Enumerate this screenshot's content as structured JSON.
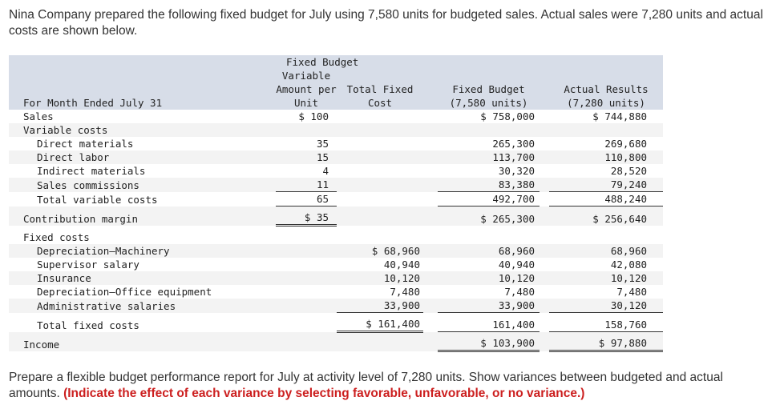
{
  "intro": "Nina Company prepared the following fixed budget for July using 7,580 units for budgeted sales. Actual sales were 7,280 units and actual costs are shown below.",
  "header": {
    "group_title": "Fixed Budget",
    "var_line1": "Variable",
    "var_line2": "Amount per",
    "var_line3": "Unit",
    "total_fixed_line1": "Total Fixed",
    "total_fixed_line2": "Cost",
    "fixed_budget_line1": "Fixed Budget",
    "fixed_budget_line2": "(7,580 units)",
    "actual_line1": "Actual Results",
    "actual_line2": "(7,280 units)",
    "period": "For Month Ended July 31"
  },
  "rows": {
    "sales": {
      "label": "Sales",
      "var": "$ 100",
      "fixed": "",
      "budget": "$ 758,000",
      "actual": "$ 744,880"
    },
    "variable_costs": {
      "label": "Variable costs"
    },
    "direct_materials": {
      "label": "Direct materials",
      "var": "35",
      "budget": "265,300",
      "actual": "269,680"
    },
    "direct_labor": {
      "label": "Direct labor",
      "var": "15",
      "budget": "113,700",
      "actual": "110,800"
    },
    "indirect_materials": {
      "label": "Indirect materials",
      "var": "4",
      "budget": "30,320",
      "actual": "28,520"
    },
    "sales_commissions": {
      "label": "Sales commissions",
      "var": "11",
      "budget": "83,380",
      "actual": "79,240"
    },
    "total_variable": {
      "label": "Total variable costs",
      "var": "65",
      "budget": "492,700",
      "actual": "488,240"
    },
    "contribution_margin": {
      "label": "Contribution margin",
      "var": "$ 35",
      "budget": "$ 265,300",
      "actual": "$ 256,640"
    },
    "fixed_costs": {
      "label": "Fixed costs"
    },
    "dep_machinery": {
      "label": "Depreciation—Machinery",
      "fixed": "$ 68,960",
      "budget": "68,960",
      "actual": "68,960"
    },
    "supervisor_salary": {
      "label": "Supervisor salary",
      "fixed": "40,940",
      "budget": "40,940",
      "actual": "42,080"
    },
    "insurance": {
      "label": "Insurance",
      "fixed": "10,120",
      "budget": "10,120",
      "actual": "10,120"
    },
    "dep_office": {
      "label": "Depreciation—Office equipment",
      "fixed": "7,480",
      "budget": "7,480",
      "actual": "7,480"
    },
    "admin_salaries": {
      "label": "Administrative salaries",
      "fixed": "33,900",
      "budget": "33,900",
      "actual": "30,120"
    },
    "total_fixed": {
      "label": "Total fixed costs",
      "fixed": "$ 161,400",
      "budget": "161,400",
      "actual": "158,760"
    },
    "income": {
      "label": "Income",
      "budget": "$ 103,900",
      "actual": "$ 97,880"
    }
  },
  "question": {
    "text": "Prepare a flexible budget performance report for July at activity level of 7,280 units. Show variances between budgeted and actual amounts.",
    "instruction": "(Indicate the effect of each variance by selecting favorable, unfavorable, or no variance.)"
  }
}
